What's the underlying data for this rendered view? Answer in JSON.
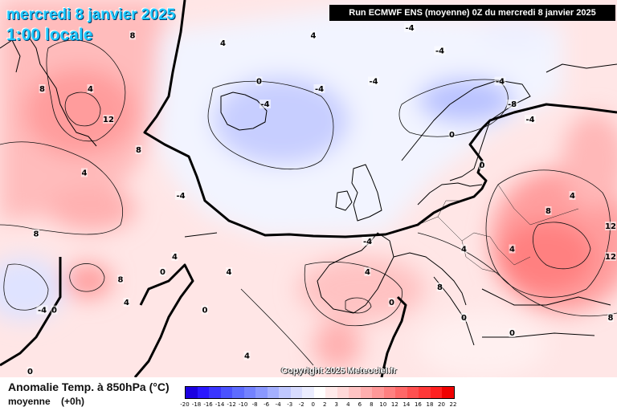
{
  "header": {
    "date": "mercredi 8 janvier 2025",
    "time": "1:00 locale",
    "run": "Run ECMWF ENS (moyenne) 0Z du mercredi 8 janvier 2025"
  },
  "footer": {
    "field": "Anomalie Temp. à 850hPa (°C)",
    "stat": "moyenne",
    "lead": "(+0h)",
    "copyright": "Copyright 2025 Meteociel.fr"
  },
  "legend": {
    "ticks": [
      "-20",
      "-18",
      "-16",
      "-14",
      "-12",
      "-10",
      "-8",
      "-6",
      "-4",
      "-3",
      "-2",
      "0",
      "2",
      "3",
      "4",
      "6",
      "8",
      "10",
      "12",
      "14",
      "16",
      "18",
      "20",
      "22"
    ],
    "colors": [
      "#1b00e0",
      "#2a18ff",
      "#3a35ff",
      "#4a52ff",
      "#5d6cff",
      "#7382ff",
      "#8a98ff",
      "#a4b0ff",
      "#c0c8ff",
      "#d8dcff",
      "#ebedff",
      "#ffffff",
      "#ffeaea",
      "#ffd8d8",
      "#ffc4c4",
      "#ffaeae",
      "#ff9898",
      "#ff8080",
      "#ff6868",
      "#ff5050",
      "#ff3838",
      "#ff2020",
      "#f00000"
    ]
  },
  "map": {
    "region": "Atlantique Nord / Europe",
    "contour_labels": [
      {
        "text": "8",
        "lon": -43,
        "lat": 73
      },
      {
        "text": "4",
        "lon": -28,
        "lat": 72
      },
      {
        "text": "0",
        "lon": -22,
        "lat": 67
      },
      {
        "text": "4",
        "lon": -50,
        "lat": 66
      },
      {
        "text": "8",
        "lon": -58,
        "lat": 66
      },
      {
        "text": "12",
        "lon": -47,
        "lat": 62
      },
      {
        "text": "8",
        "lon": -42,
        "lat": 58
      },
      {
        "text": "4",
        "lon": -51,
        "lat": 55
      },
      {
        "text": "8",
        "lon": -59,
        "lat": 47
      },
      {
        "text": "4",
        "lon": -36,
        "lat": 44
      },
      {
        "text": "4",
        "lon": -27,
        "lat": 42
      },
      {
        "text": "-4",
        "lon": -35,
        "lat": 52
      },
      {
        "text": "-4",
        "lon": -21,
        "lat": 64
      },
      {
        "text": "-4",
        "lon": -12,
        "lat": 66
      },
      {
        "text": "-4",
        "lon": -3,
        "lat": 67
      },
      {
        "text": "4",
        "lon": -13,
        "lat": 73
      },
      {
        "text": "-4",
        "lon": 3,
        "lat": 74
      },
      {
        "text": "-4",
        "lon": 8,
        "lat": 71
      },
      {
        "text": "-4",
        "lon": 18,
        "lat": 67
      },
      {
        "text": "-8",
        "lon": 20,
        "lat": 64
      },
      {
        "text": "-4",
        "lon": 23,
        "lat": 62
      },
      {
        "text": "0",
        "lon": 10,
        "lat": 60
      },
      {
        "text": "0",
        "lon": 15,
        "lat": 56
      },
      {
        "text": "-4",
        "lon": -4,
        "lat": 46
      },
      {
        "text": "4",
        "lon": -4,
        "lat": 42
      },
      {
        "text": "4",
        "lon": 12,
        "lat": 45
      },
      {
        "text": "4",
        "lon": 20,
        "lat": 45
      },
      {
        "text": "8",
        "lon": 8,
        "lat": 40
      },
      {
        "text": "0",
        "lon": 0,
        "lat": 38
      },
      {
        "text": "0",
        "lon": 12,
        "lat": 36
      },
      {
        "text": "0",
        "lon": 20,
        "lat": 34
      },
      {
        "text": "8",
        "lon": 26,
        "lat": 50
      },
      {
        "text": "4",
        "lon": 30,
        "lat": 52
      },
      {
        "text": "12",
        "lon": 40,
        "lat": 48
      },
      {
        "text": "12",
        "lon": 46,
        "lat": 44
      },
      {
        "text": "8",
        "lon": 46,
        "lat": 36
      },
      {
        "text": "8",
        "lon": -45,
        "lat": 41
      },
      {
        "text": "0",
        "lon": -38,
        "lat": 42
      },
      {
        "text": "4",
        "lon": -44,
        "lat": 38
      },
      {
        "text": "0",
        "lon": -31,
        "lat": 37
      },
      {
        "text": "-4",
        "lon": -58,
        "lat": 37
      },
      {
        "text": "0",
        "lon": -56,
        "lat": 37
      },
      {
        "text": "4",
        "lon": -24,
        "lat": 31
      },
      {
        "text": "0",
        "lon": -60,
        "lat": 28
      }
    ]
  }
}
